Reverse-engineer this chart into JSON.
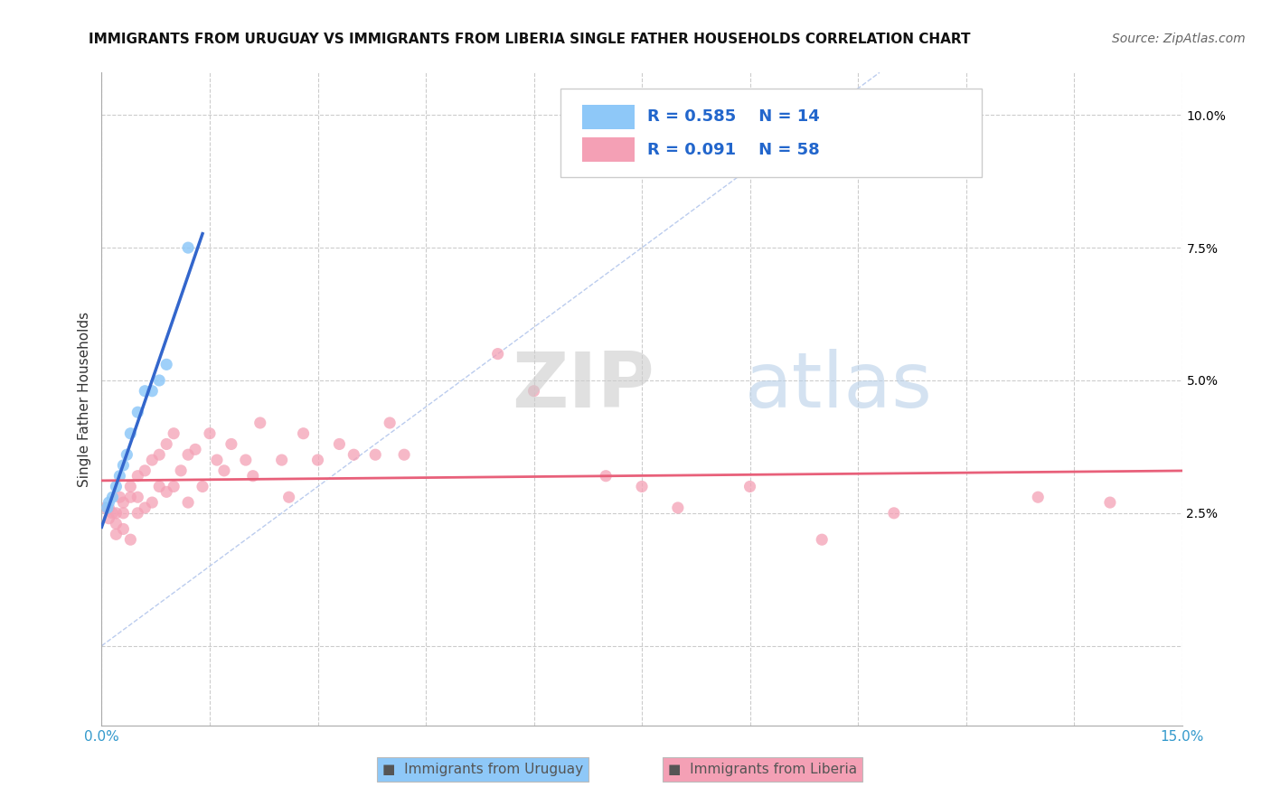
{
  "title": "IMMIGRANTS FROM URUGUAY VS IMMIGRANTS FROM LIBERIA SINGLE FATHER HOUSEHOLDS CORRELATION CHART",
  "source": "Source: ZipAtlas.com",
  "ylabel": "Single Father Households",
  "xlim": [
    0.0,
    0.15
  ],
  "ylim": [
    -0.015,
    0.108
  ],
  "ytick_vals": [
    0.0,
    0.025,
    0.05,
    0.075,
    0.1
  ],
  "xtick_vals": [
    0.0,
    0.015,
    0.03,
    0.045,
    0.06,
    0.075,
    0.09,
    0.105,
    0.12,
    0.135,
    0.15
  ],
  "legend_r1": "R = 0.585",
  "legend_n1": "N = 14",
  "legend_r2": "R = 0.091",
  "legend_n2": "N = 58",
  "color_uruguay": "#8EC8F8",
  "color_liberia": "#F4A0B5",
  "color_trendline_uruguay": "#3366CC",
  "color_trendline_liberia": "#E8607A",
  "color_diagonal": "#BBCCEE",
  "watermark_zip": "ZIP",
  "watermark_atlas": "atlas",
  "uruguay_x": [
    0.0008,
    0.001,
    0.0015,
    0.002,
    0.0025,
    0.003,
    0.0035,
    0.004,
    0.005,
    0.006,
    0.007,
    0.008,
    0.009,
    0.012
  ],
  "uruguay_y": [
    0.026,
    0.027,
    0.028,
    0.03,
    0.032,
    0.034,
    0.036,
    0.04,
    0.044,
    0.048,
    0.048,
    0.05,
    0.053,
    0.075
  ],
  "liberia_x": [
    0.0005,
    0.001,
    0.001,
    0.0015,
    0.002,
    0.002,
    0.002,
    0.0025,
    0.003,
    0.003,
    0.003,
    0.004,
    0.004,
    0.004,
    0.005,
    0.005,
    0.005,
    0.006,
    0.006,
    0.007,
    0.007,
    0.008,
    0.008,
    0.009,
    0.009,
    0.01,
    0.01,
    0.011,
    0.012,
    0.012,
    0.013,
    0.014,
    0.015,
    0.016,
    0.017,
    0.018,
    0.02,
    0.021,
    0.022,
    0.025,
    0.026,
    0.028,
    0.03,
    0.033,
    0.035,
    0.038,
    0.04,
    0.042,
    0.055,
    0.06,
    0.07,
    0.075,
    0.08,
    0.09,
    0.1,
    0.11,
    0.13,
    0.14
  ],
  "liberia_y": [
    0.026,
    0.026,
    0.024,
    0.025,
    0.025,
    0.023,
    0.021,
    0.028,
    0.027,
    0.025,
    0.022,
    0.03,
    0.028,
    0.02,
    0.032,
    0.028,
    0.025,
    0.033,
    0.026,
    0.035,
    0.027,
    0.036,
    0.03,
    0.038,
    0.029,
    0.04,
    0.03,
    0.033,
    0.036,
    0.027,
    0.037,
    0.03,
    0.04,
    0.035,
    0.033,
    0.038,
    0.035,
    0.032,
    0.042,
    0.035,
    0.028,
    0.04,
    0.035,
    0.038,
    0.036,
    0.036,
    0.042,
    0.036,
    0.055,
    0.048,
    0.032,
    0.03,
    0.026,
    0.03,
    0.02,
    0.025,
    0.028,
    0.027
  ]
}
